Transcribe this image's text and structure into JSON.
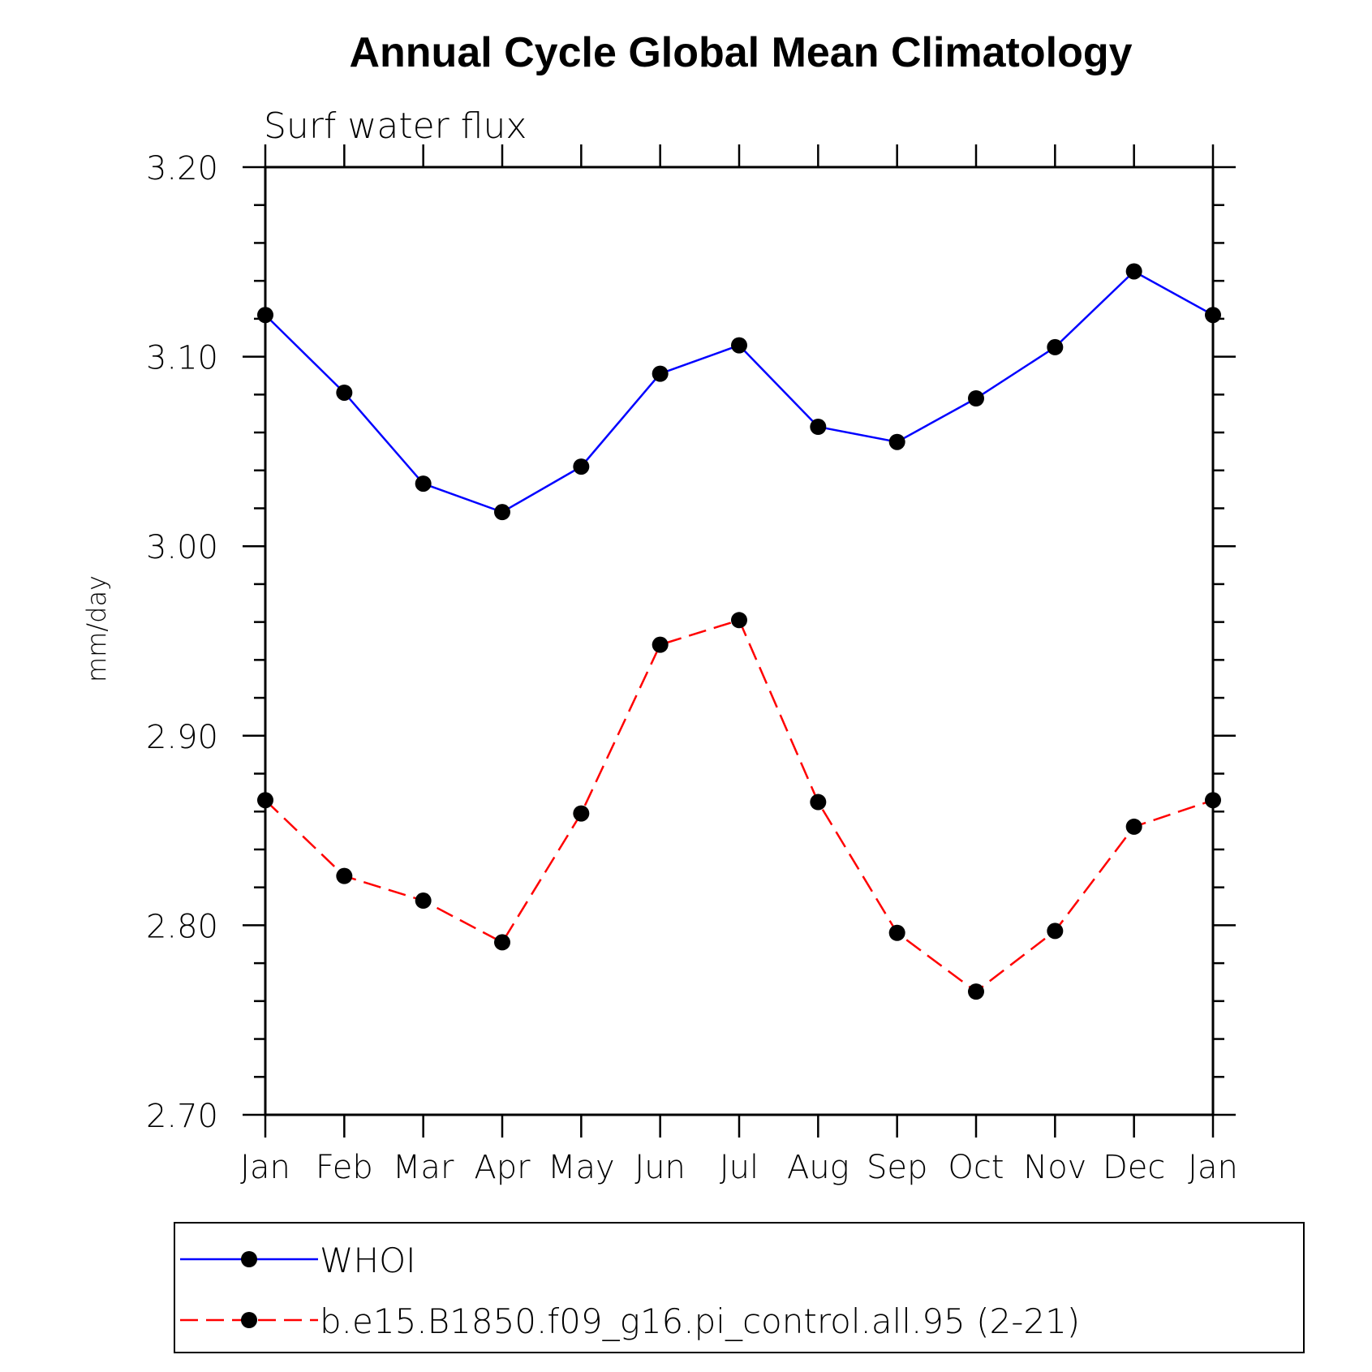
{
  "chart_data": {
    "type": "line",
    "title": "Annual Cycle Global Mean Climatology",
    "subtitle": "Surf water flux",
    "xlabel": "",
    "ylabel": "mm/day",
    "categories": [
      "Jan",
      "Feb",
      "Mar",
      "Apr",
      "May",
      "Jun",
      "Jul",
      "Aug",
      "Sep",
      "Oct",
      "Nov",
      "Dec",
      "Jan"
    ],
    "ylim": [
      2.7,
      3.2
    ],
    "yticks": [
      2.7,
      2.8,
      2.9,
      3.0,
      3.1,
      3.2
    ],
    "ytick_labels": [
      "2.70",
      "2.80",
      "2.90",
      "3.00",
      "3.10",
      "3.20"
    ],
    "y_minor_step": 0.02,
    "grid": false,
    "legend_position": "bottom",
    "series": [
      {
        "name": "WHOI",
        "color": "#0000ff",
        "dash": "solid",
        "marker": "circle",
        "values": [
          3.122,
          3.081,
          3.033,
          3.018,
          3.042,
          3.091,
          3.106,
          3.063,
          3.055,
          3.078,
          3.105,
          3.145,
          3.122
        ]
      },
      {
        "name": "b.e15.B1850.f09_g16.pi_control.all.95 (2-21)",
        "color": "#ff0000",
        "dash": "dashed",
        "marker": "circle",
        "values": [
          2.866,
          2.826,
          2.813,
          2.791,
          2.859,
          2.948,
          2.961,
          2.865,
          2.796,
          2.765,
          2.797,
          2.852,
          2.866
        ]
      }
    ]
  }
}
